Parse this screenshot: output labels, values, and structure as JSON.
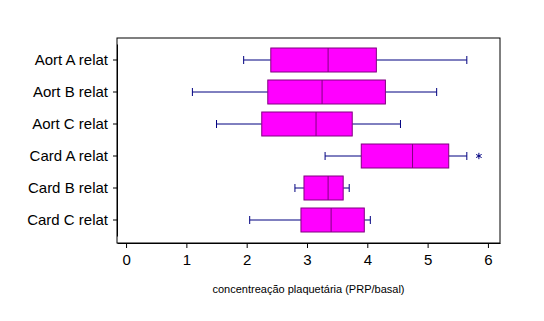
{
  "chart_data": {
    "type": "box",
    "orientation": "horizontal",
    "xlabel": "concentreação plaquetária (PRP/basal)",
    "categories": [
      "Aort A relat",
      "Aort B relat",
      "Aort C relat",
      "Card A relat",
      "Card B relat",
      "Card C relat"
    ],
    "boxes": [
      {
        "whislo": 1.95,
        "q1": 2.4,
        "med": 3.35,
        "q3": 4.15,
        "whishi": 5.65,
        "fliers": []
      },
      {
        "whislo": 1.1,
        "q1": 2.35,
        "med": 3.25,
        "q3": 4.3,
        "whishi": 5.15,
        "fliers": []
      },
      {
        "whislo": 1.5,
        "q1": 2.25,
        "med": 3.15,
        "q3": 3.75,
        "whishi": 4.55,
        "fliers": []
      },
      {
        "whislo": 3.3,
        "q1": 3.9,
        "med": 4.75,
        "q3": 5.35,
        "whishi": 5.65,
        "fliers": [
          5.85
        ]
      },
      {
        "whislo": 2.8,
        "q1": 2.95,
        "med": 3.35,
        "q3": 3.6,
        "whishi": 3.7,
        "fliers": []
      },
      {
        "whislo": 2.05,
        "q1": 2.9,
        "med": 3.4,
        "q3": 3.95,
        "whishi": 4.05,
        "fliers": []
      }
    ],
    "color": "#ff00ff",
    "xlim": [
      -0.15,
      6.2
    ],
    "xticks": [
      0,
      1,
      2,
      3,
      4,
      5,
      6
    ],
    "marker": "asterisk",
    "grid": false
  }
}
